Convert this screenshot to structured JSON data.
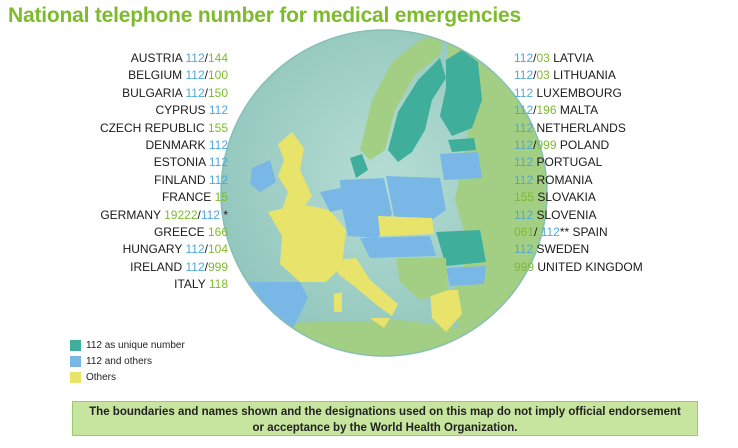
{
  "title": "National telephone number for medical emergencies",
  "colors": {
    "unique_112": "#3fae9b",
    "and_others_112": "#79b7e6",
    "others": "#e7e36b",
    "sea": "#9fd0c7",
    "land_noneu": "#a3cf84"
  },
  "left_countries": [
    {
      "country": "AUSTRIA",
      "parts": [
        {
          "t": "112",
          "c": "b"
        },
        {
          "t": "/",
          "c": "c"
        },
        {
          "t": "144",
          "c": "g"
        }
      ]
    },
    {
      "country": "BELGIUM",
      "parts": [
        {
          "t": "112",
          "c": "b"
        },
        {
          "t": "/",
          "c": "c"
        },
        {
          "t": "100",
          "c": "g"
        }
      ]
    },
    {
      "country": "BULGARIA",
      "parts": [
        {
          "t": "112",
          "c": "b"
        },
        {
          "t": "/",
          "c": "c"
        },
        {
          "t": "150",
          "c": "g"
        }
      ]
    },
    {
      "country": "CYPRUS",
      "parts": [
        {
          "t": "112",
          "c": "b"
        }
      ]
    },
    {
      "country": "CZECH REPUBLIC",
      "parts": [
        {
          "t": "155",
          "c": "g"
        }
      ]
    },
    {
      "country": "DENMARK",
      "parts": [
        {
          "t": "112",
          "c": "b"
        }
      ]
    },
    {
      "country": "ESTONIA",
      "parts": [
        {
          "t": "112",
          "c": "b"
        }
      ]
    },
    {
      "country": "FINLAND",
      "parts": [
        {
          "t": "112",
          "c": "b"
        }
      ]
    },
    {
      "country": "FRANCE",
      "parts": [
        {
          "t": "15",
          "c": "g"
        }
      ]
    },
    {
      "country": "GERMANY",
      "parts": [
        {
          "t": "19222",
          "c": "g"
        },
        {
          "t": "/",
          "c": "c"
        },
        {
          "t": "112",
          "c": "b"
        },
        {
          "t": " *",
          "c": "c"
        }
      ]
    },
    {
      "country": "GREECE",
      "parts": [
        {
          "t": "166",
          "c": "g"
        }
      ]
    },
    {
      "country": "HUNGARY",
      "parts": [
        {
          "t": "112",
          "c": "b"
        },
        {
          "t": "/",
          "c": "c"
        },
        {
          "t": "104",
          "c": "g"
        }
      ]
    },
    {
      "country": "IRELAND",
      "parts": [
        {
          "t": "112",
          "c": "b"
        },
        {
          "t": "/",
          "c": "c"
        },
        {
          "t": "999",
          "c": "g"
        }
      ]
    },
    {
      "country": "ITALY",
      "parts": [
        {
          "t": "118",
          "c": "g"
        }
      ]
    }
  ],
  "right_countries": [
    {
      "country": "LATVIA",
      "parts": [
        {
          "t": "112",
          "c": "b"
        },
        {
          "t": "/",
          "c": "c"
        },
        {
          "t": "03",
          "c": "g"
        }
      ]
    },
    {
      "country": "LITHUANIA",
      "parts": [
        {
          "t": "112",
          "c": "b"
        },
        {
          "t": "/",
          "c": "c"
        },
        {
          "t": "03",
          "c": "g"
        }
      ]
    },
    {
      "country": "LUXEMBOURG",
      "parts": [
        {
          "t": "112",
          "c": "b"
        }
      ]
    },
    {
      "country": "MALTA",
      "parts": [
        {
          "t": "112",
          "c": "b"
        },
        {
          "t": "/",
          "c": "c"
        },
        {
          "t": "196",
          "c": "g"
        }
      ]
    },
    {
      "country": "NETHERLANDS",
      "parts": [
        {
          "t": "112",
          "c": "b"
        }
      ]
    },
    {
      "country": "POLAND",
      "parts": [
        {
          "t": "112",
          "c": "b"
        },
        {
          "t": "/",
          "c": "c"
        },
        {
          "t": "999",
          "c": "g"
        }
      ]
    },
    {
      "country": "PORTUGAL",
      "parts": [
        {
          "t": "112",
          "c": "b"
        }
      ]
    },
    {
      "country": "ROMANIA",
      "parts": [
        {
          "t": "112",
          "c": "b"
        }
      ]
    },
    {
      "country": "SLOVAKIA",
      "parts": [
        {
          "t": "155",
          "c": "g"
        }
      ]
    },
    {
      "country": "SLOVENIA",
      "parts": [
        {
          "t": "112",
          "c": "b"
        }
      ]
    },
    {
      "country": "SPAIN",
      "parts": [
        {
          "t": "061",
          "c": "g"
        },
        {
          "t": "/ ",
          "c": "c"
        },
        {
          "t": "112",
          "c": "b"
        },
        {
          "t": "** ",
          "c": "c"
        }
      ]
    },
    {
      "country": "SWEDEN",
      "parts": [
        {
          "t": "112",
          "c": "b"
        }
      ]
    },
    {
      "country": "UNITED KINGDOM",
      "parts": [
        {
          "t": "999",
          "c": "g"
        }
      ]
    }
  ],
  "legend": [
    {
      "label": "112 as unique number",
      "color": "#3fae9b"
    },
    {
      "label": "112 and others",
      "color": "#79b7e6"
    },
    {
      "label": "Others",
      "color": "#e7e36b"
    }
  ],
  "disclaimer": {
    "line1": "The boundaries and names shown and the designations used on this map do not imply official endorsement",
    "line2": "or acceptance by the World Health Organization."
  }
}
